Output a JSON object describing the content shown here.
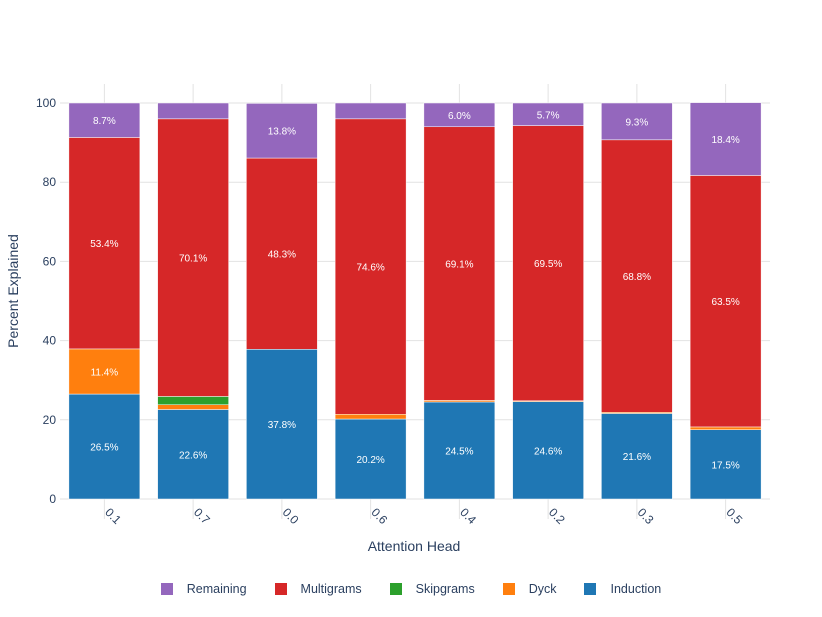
{
  "chart_data": {
    "type": "bar",
    "stacked": true,
    "title": "",
    "xlabel": "Attention Head",
    "ylabel": "Percent Explained",
    "ylim": [
      0,
      100
    ],
    "yticks": [
      0,
      20,
      40,
      60,
      80,
      100
    ],
    "categories": [
      "0.1",
      "0.7",
      "0.0",
      "0.6",
      "0.4",
      "0.2",
      "0.3",
      "0.5"
    ],
    "series": [
      {
        "name": "Induction",
        "color": "#1f77b4",
        "values": [
          26.5,
          22.6,
          37.8,
          20.2,
          24.5,
          24.6,
          21.6,
          17.5
        ]
      },
      {
        "name": "Dyck",
        "color": "#ff7f0e",
        "values": [
          11.4,
          1.2,
          0,
          1.2,
          0.4,
          0.2,
          0.3,
          0.7
        ]
      },
      {
        "name": "Skipgrams",
        "color": "#2ca02c",
        "values": [
          0,
          2.1,
          0,
          0,
          0,
          0,
          0,
          0
        ]
      },
      {
        "name": "Multigrams",
        "color": "#d62728",
        "values": [
          53.4,
          70.1,
          48.3,
          74.6,
          69.1,
          69.5,
          68.8,
          63.5
        ]
      },
      {
        "name": "Remaining",
        "color": "#9467bd",
        "values": [
          8.7,
          4.0,
          13.8,
          4.0,
          6.0,
          5.7,
          9.3,
          18.4
        ]
      }
    ],
    "data_labels": {
      "Induction": [
        "26.5%",
        "22.6%",
        "37.8%",
        "20.2%",
        "24.5%",
        "24.6%",
        "21.6%",
        "17.5%"
      ],
      "Dyck": [
        "11.4%",
        "",
        "",
        "",
        "",
        "",
        "",
        ""
      ],
      "Skipgrams": [
        "",
        "",
        "",
        "",
        "",
        "",
        "",
        ""
      ],
      "Multigrams": [
        "53.4%",
        "70.1%",
        "48.3%",
        "74.6%",
        "69.1%",
        "69.5%",
        "68.8%",
        "63.5%"
      ],
      "Remaining": [
        "8.7%",
        "",
        "13.8%",
        "",
        "6.0%",
        "5.7%",
        "9.3%",
        "18.4%"
      ]
    },
    "legend": {
      "position": "bottom",
      "order": [
        "Remaining",
        "Multigrams",
        "Skipgrams",
        "Dyck",
        "Induction"
      ]
    },
    "grid": true
  }
}
